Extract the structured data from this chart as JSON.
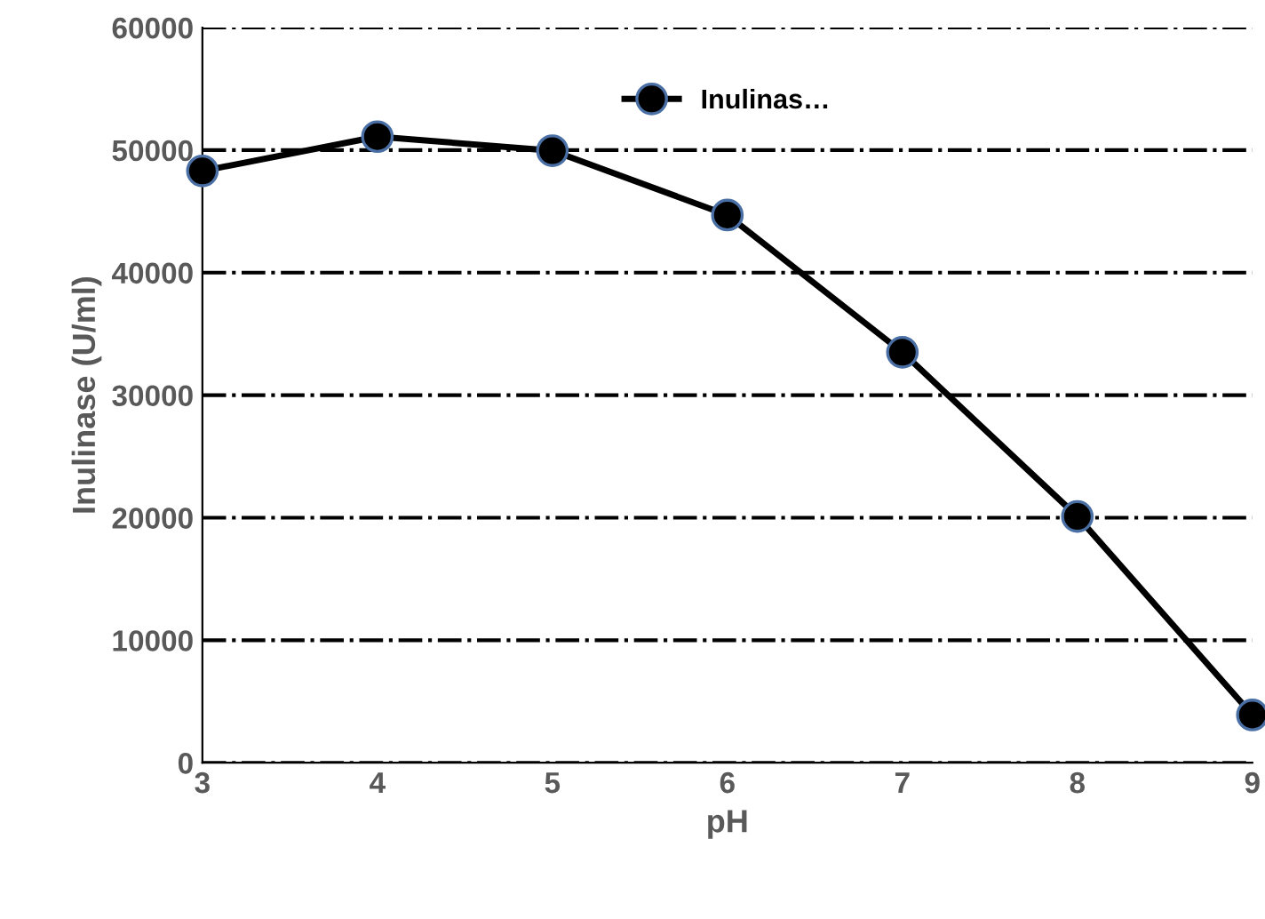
{
  "chart_data": {
    "type": "line",
    "xlabel": "pH",
    "ylabel": "Inulinase (U/ml)",
    "x": [
      3,
      4,
      5,
      6,
      7,
      8,
      9
    ],
    "series": [
      {
        "name": "Inulinas…",
        "color": "#000000",
        "values": [
          48300,
          51100,
          49950,
          44700,
          33500,
          20100,
          3900
        ]
      }
    ],
    "xlim": [
      3,
      9
    ],
    "xticks": [
      3,
      4,
      5,
      6,
      7,
      8,
      9
    ],
    "ylim": [
      0,
      60000
    ],
    "yticks": [
      0,
      10000,
      20000,
      30000,
      40000,
      50000,
      60000
    ],
    "grid": "y",
    "legend": "top",
    "marker": "circle",
    "line_style": "solid"
  }
}
